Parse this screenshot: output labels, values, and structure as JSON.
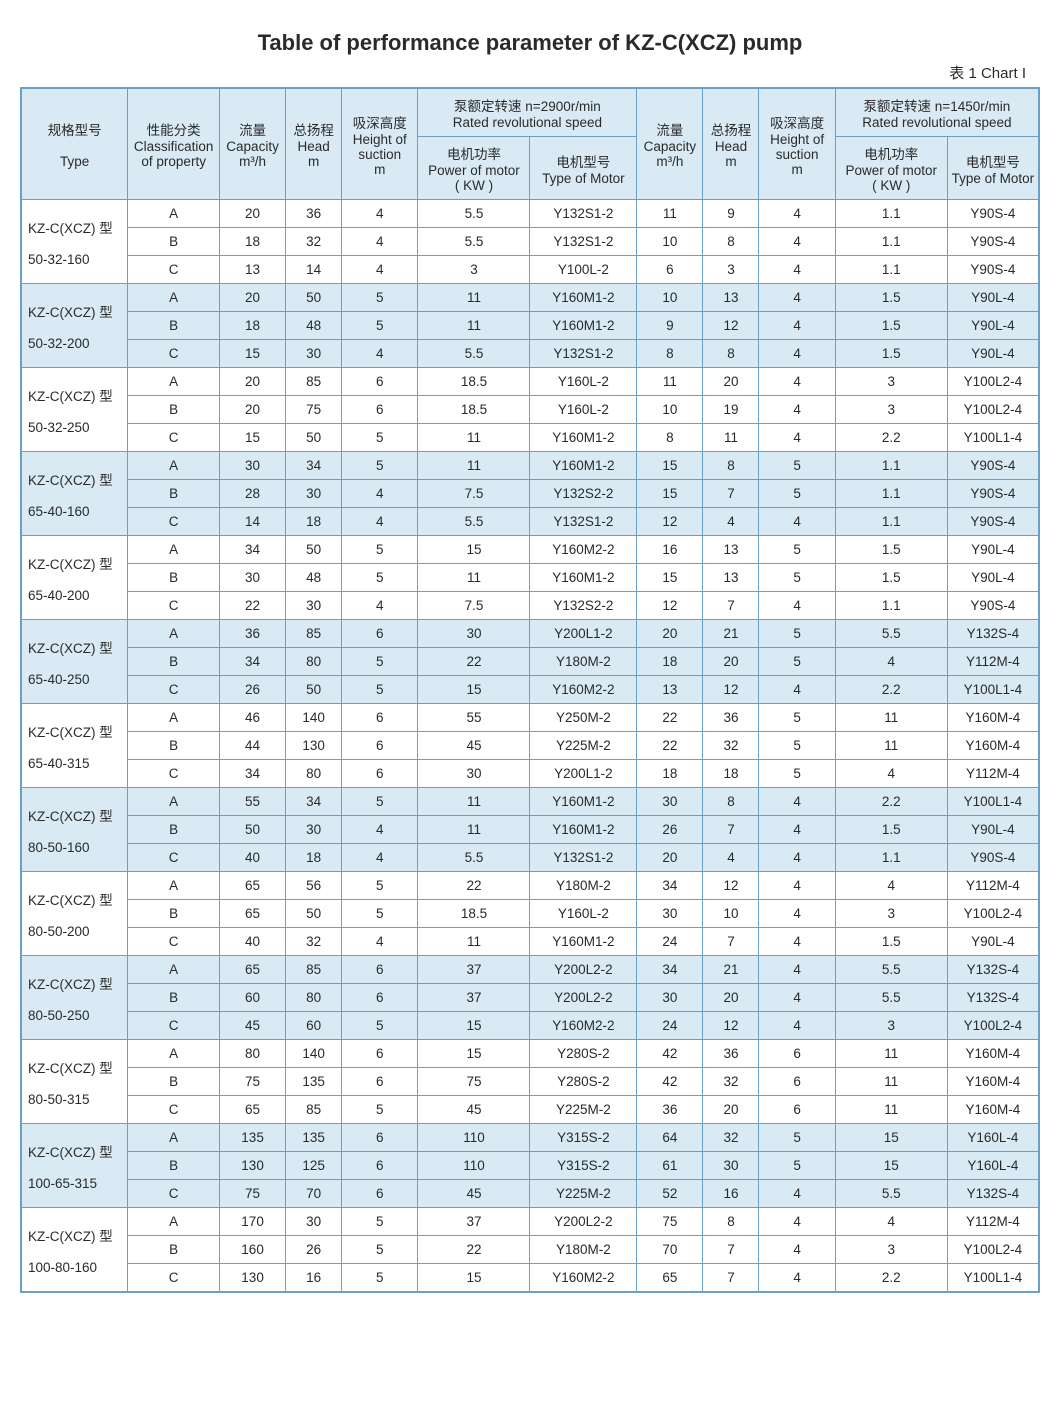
{
  "title": "Table of performance parameter of KZ-C(XCZ) pump",
  "chart_label": "表 1  Chart  I",
  "header": {
    "type_zh": "规格型号",
    "type_en": "Type",
    "class_zh": "性能分类",
    "class_en": "Classification of property",
    "cap_zh": "流量",
    "cap_en": "Capacity",
    "cap_unit": "m³/h",
    "head_zh": "总扬程",
    "head_en": "Head",
    "head_unit": "m",
    "suc_zh": "吸深高度",
    "suc_en": "Height of suction",
    "suc_unit": "m",
    "rated_2900_zh": "泵额定转速 n=2900r/min",
    "rated_2900_en": "Rated revolutional speed",
    "rated_1450_zh": "泵额定转速 n=1450r/min",
    "rated_1450_en": "Rated revolutional speed",
    "pow_zh": "电机功率",
    "pow_en": "Power of motor",
    "pow_unit": "( KW )",
    "mot_zh": "电机型号",
    "mot_en": "Type of Motor"
  },
  "types": [
    {
      "prefix": "KZ-C(XCZ) 型",
      "model": "50-32-160",
      "alt": false,
      "rows": [
        {
          "cls": "A",
          "cap": "20",
          "head": "36",
          "suc": "4",
          "pow": "5.5",
          "mot": "Y132S1-2",
          "cap2": "11",
          "head2": "9",
          "suc2": "4",
          "pow2": "1.1",
          "mot2": "Y90S-4"
        },
        {
          "cls": "B",
          "cap": "18",
          "head": "32",
          "suc": "4",
          "pow": "5.5",
          "mot": "Y132S1-2",
          "cap2": "10",
          "head2": "8",
          "suc2": "4",
          "pow2": "1.1",
          "mot2": "Y90S-4"
        },
        {
          "cls": "C",
          "cap": "13",
          "head": "14",
          "suc": "4",
          "pow": "3",
          "mot": "Y100L-2",
          "cap2": "6",
          "head2": "3",
          "suc2": "4",
          "pow2": "1.1",
          "mot2": "Y90S-4"
        }
      ]
    },
    {
      "prefix": "KZ-C(XCZ) 型",
      "model": "50-32-200",
      "alt": true,
      "rows": [
        {
          "cls": "A",
          "cap": "20",
          "head": "50",
          "suc": "5",
          "pow": "11",
          "mot": "Y160M1-2",
          "cap2": "10",
          "head2": "13",
          "suc2": "4",
          "pow2": "1.5",
          "mot2": "Y90L-4"
        },
        {
          "cls": "B",
          "cap": "18",
          "head": "48",
          "suc": "5",
          "pow": "11",
          "mot": "Y160M1-2",
          "cap2": "9",
          "head2": "12",
          "suc2": "4",
          "pow2": "1.5",
          "mot2": "Y90L-4"
        },
        {
          "cls": "C",
          "cap": "15",
          "head": "30",
          "suc": "4",
          "pow": "5.5",
          "mot": "Y132S1-2",
          "cap2": "8",
          "head2": "8",
          "suc2": "4",
          "pow2": "1.5",
          "mot2": "Y90L-4"
        }
      ]
    },
    {
      "prefix": "KZ-C(XCZ) 型",
      "model": "50-32-250",
      "alt": false,
      "rows": [
        {
          "cls": "A",
          "cap": "20",
          "head": "85",
          "suc": "6",
          "pow": "18.5",
          "mot": "Y160L-2",
          "cap2": "11",
          "head2": "20",
          "suc2": "4",
          "pow2": "3",
          "mot2": "Y100L2-4"
        },
        {
          "cls": "B",
          "cap": "20",
          "head": "75",
          "suc": "6",
          "pow": "18.5",
          "mot": "Y160L-2",
          "cap2": "10",
          "head2": "19",
          "suc2": "4",
          "pow2": "3",
          "mot2": "Y100L2-4"
        },
        {
          "cls": "C",
          "cap": "15",
          "head": "50",
          "suc": "5",
          "pow": "11",
          "mot": "Y160M1-2",
          "cap2": "8",
          "head2": "11",
          "suc2": "4",
          "pow2": "2.2",
          "mot2": "Y100L1-4"
        }
      ]
    },
    {
      "prefix": "KZ-C(XCZ) 型",
      "model": "65-40-160",
      "alt": true,
      "rows": [
        {
          "cls": "A",
          "cap": "30",
          "head": "34",
          "suc": "5",
          "pow": "11",
          "mot": "Y160M1-2",
          "cap2": "15",
          "head2": "8",
          "suc2": "5",
          "pow2": "1.1",
          "mot2": "Y90S-4"
        },
        {
          "cls": "B",
          "cap": "28",
          "head": "30",
          "suc": "4",
          "pow": "7.5",
          "mot": "Y132S2-2",
          "cap2": "15",
          "head2": "7",
          "suc2": "5",
          "pow2": "1.1",
          "mot2": "Y90S-4"
        },
        {
          "cls": "C",
          "cap": "14",
          "head": "18",
          "suc": "4",
          "pow": "5.5",
          "mot": "Y132S1-2",
          "cap2": "12",
          "head2": "4",
          "suc2": "4",
          "pow2": "1.1",
          "mot2": "Y90S-4"
        }
      ]
    },
    {
      "prefix": "KZ-C(XCZ) 型",
      "model": "65-40-200",
      "alt": false,
      "rows": [
        {
          "cls": "A",
          "cap": "34",
          "head": "50",
          "suc": "5",
          "pow": "15",
          "mot": "Y160M2-2",
          "cap2": "16",
          "head2": "13",
          "suc2": "5",
          "pow2": "1.5",
          "mot2": "Y90L-4"
        },
        {
          "cls": "B",
          "cap": "30",
          "head": "48",
          "suc": "5",
          "pow": "11",
          "mot": "Y160M1-2",
          "cap2": "15",
          "head2": "13",
          "suc2": "5",
          "pow2": "1.5",
          "mot2": "Y90L-4"
        },
        {
          "cls": "C",
          "cap": "22",
          "head": "30",
          "suc": "4",
          "pow": "7.5",
          "mot": "Y132S2-2",
          "cap2": "12",
          "head2": "7",
          "suc2": "4",
          "pow2": "1.1",
          "mot2": "Y90S-4"
        }
      ]
    },
    {
      "prefix": "KZ-C(XCZ) 型",
      "model": "65-40-250",
      "alt": true,
      "rows": [
        {
          "cls": "A",
          "cap": "36",
          "head": "85",
          "suc": "6",
          "pow": "30",
          "mot": "Y200L1-2",
          "cap2": "20",
          "head2": "21",
          "suc2": "5",
          "pow2": "5.5",
          "mot2": "Y132S-4"
        },
        {
          "cls": "B",
          "cap": "34",
          "head": "80",
          "suc": "5",
          "pow": "22",
          "mot": "Y180M-2",
          "cap2": "18",
          "head2": "20",
          "suc2": "5",
          "pow2": "4",
          "mot2": "Y112M-4"
        },
        {
          "cls": "C",
          "cap": "26",
          "head": "50",
          "suc": "5",
          "pow": "15",
          "mot": "Y160M2-2",
          "cap2": "13",
          "head2": "12",
          "suc2": "4",
          "pow2": "2.2",
          "mot2": "Y100L1-4"
        }
      ]
    },
    {
      "prefix": "KZ-C(XCZ) 型",
      "model": "65-40-315",
      "alt": false,
      "rows": [
        {
          "cls": "A",
          "cap": "46",
          "head": "140",
          "suc": "6",
          "pow": "55",
          "mot": "Y250M-2",
          "cap2": "22",
          "head2": "36",
          "suc2": "5",
          "pow2": "11",
          "mot2": "Y160M-4"
        },
        {
          "cls": "B",
          "cap": "44",
          "head": "130",
          "suc": "6",
          "pow": "45",
          "mot": "Y225M-2",
          "cap2": "22",
          "head2": "32",
          "suc2": "5",
          "pow2": "11",
          "mot2": "Y160M-4"
        },
        {
          "cls": "C",
          "cap": "34",
          "head": "80",
          "suc": "6",
          "pow": "30",
          "mot": "Y200L1-2",
          "cap2": "18",
          "head2": "18",
          "suc2": "5",
          "pow2": "4",
          "mot2": "Y112M-4"
        }
      ]
    },
    {
      "prefix": "KZ-C(XCZ) 型",
      "model": "80-50-160",
      "alt": true,
      "rows": [
        {
          "cls": "A",
          "cap": "55",
          "head": "34",
          "suc": "5",
          "pow": "11",
          "mot": "Y160M1-2",
          "cap2": "30",
          "head2": "8",
          "suc2": "4",
          "pow2": "2.2",
          "mot2": "Y100L1-4"
        },
        {
          "cls": "B",
          "cap": "50",
          "head": "30",
          "suc": "4",
          "pow": "11",
          "mot": "Y160M1-2",
          "cap2": "26",
          "head2": "7",
          "suc2": "4",
          "pow2": "1.5",
          "mot2": "Y90L-4"
        },
        {
          "cls": "C",
          "cap": "40",
          "head": "18",
          "suc": "4",
          "pow": "5.5",
          "mot": "Y132S1-2",
          "cap2": "20",
          "head2": "4",
          "suc2": "4",
          "pow2": "1.1",
          "mot2": "Y90S-4"
        }
      ]
    },
    {
      "prefix": "KZ-C(XCZ) 型",
      "model": "80-50-200",
      "alt": false,
      "rows": [
        {
          "cls": "A",
          "cap": "65",
          "head": "56",
          "suc": "5",
          "pow": "22",
          "mot": "Y180M-2",
          "cap2": "34",
          "head2": "12",
          "suc2": "4",
          "pow2": "4",
          "mot2": "Y112M-4"
        },
        {
          "cls": "B",
          "cap": "65",
          "head": "50",
          "suc": "5",
          "pow": "18.5",
          "mot": "Y160L-2",
          "cap2": "30",
          "head2": "10",
          "suc2": "4",
          "pow2": "3",
          "mot2": "Y100L2-4"
        },
        {
          "cls": "C",
          "cap": "40",
          "head": "32",
          "suc": "4",
          "pow": "11",
          "mot": "Y160M1-2",
          "cap2": "24",
          "head2": "7",
          "suc2": "4",
          "pow2": "1.5",
          "mot2": "Y90L-4"
        }
      ]
    },
    {
      "prefix": "KZ-C(XCZ) 型",
      "model": "80-50-250",
      "alt": true,
      "rows": [
        {
          "cls": "A",
          "cap": "65",
          "head": "85",
          "suc": "6",
          "pow": "37",
          "mot": "Y200L2-2",
          "cap2": "34",
          "head2": "21",
          "suc2": "4",
          "pow2": "5.5",
          "mot2": "Y132S-4"
        },
        {
          "cls": "B",
          "cap": "60",
          "head": "80",
          "suc": "6",
          "pow": "37",
          "mot": "Y200L2-2",
          "cap2": "30",
          "head2": "20",
          "suc2": "4",
          "pow2": "5.5",
          "mot2": "Y132S-4"
        },
        {
          "cls": "C",
          "cap": "45",
          "head": "60",
          "suc": "5",
          "pow": "15",
          "mot": "Y160M2-2",
          "cap2": "24",
          "head2": "12",
          "suc2": "4",
          "pow2": "3",
          "mot2": "Y100L2-4"
        }
      ]
    },
    {
      "prefix": "KZ-C(XCZ) 型",
      "model": "80-50-315",
      "alt": false,
      "rows": [
        {
          "cls": "A",
          "cap": "80",
          "head": "140",
          "suc": "6",
          "pow": "15",
          "mot": "Y280S-2",
          "cap2": "42",
          "head2": "36",
          "suc2": "6",
          "pow2": "11",
          "mot2": "Y160M-4"
        },
        {
          "cls": "B",
          "cap": "75",
          "head": "135",
          "suc": "6",
          "pow": "75",
          "mot": "Y280S-2",
          "cap2": "42",
          "head2": "32",
          "suc2": "6",
          "pow2": "11",
          "mot2": "Y160M-4"
        },
        {
          "cls": "C",
          "cap": "65",
          "head": "85",
          "suc": "5",
          "pow": "45",
          "mot": "Y225M-2",
          "cap2": "36",
          "head2": "20",
          "suc2": "6",
          "pow2": "11",
          "mot2": "Y160M-4"
        }
      ]
    },
    {
      "prefix": "KZ-C(XCZ) 型",
      "model": "100-65-315",
      "alt": true,
      "rows": [
        {
          "cls": "A",
          "cap": "135",
          "head": "135",
          "suc": "6",
          "pow": "110",
          "mot": "Y315S-2",
          "cap2": "64",
          "head2": "32",
          "suc2": "5",
          "pow2": "15",
          "mot2": "Y160L-4"
        },
        {
          "cls": "B",
          "cap": "130",
          "head": "125",
          "suc": "6",
          "pow": "110",
          "mot": "Y315S-2",
          "cap2": "61",
          "head2": "30",
          "suc2": "5",
          "pow2": "15",
          "mot2": "Y160L-4"
        },
        {
          "cls": "C",
          "cap": "75",
          "head": "70",
          "suc": "6",
          "pow": "45",
          "mot": "Y225M-2",
          "cap2": "52",
          "head2": "16",
          "suc2": "4",
          "pow2": "5.5",
          "mot2": "Y132S-4"
        }
      ]
    },
    {
      "prefix": "KZ-C(XCZ) 型",
      "model": "100-80-160",
      "alt": false,
      "rows": [
        {
          "cls": "A",
          "cap": "170",
          "head": "30",
          "suc": "5",
          "pow": "37",
          "mot": "Y200L2-2",
          "cap2": "75",
          "head2": "8",
          "suc2": "4",
          "pow2": "4",
          "mot2": "Y112M-4"
        },
        {
          "cls": "B",
          "cap": "160",
          "head": "26",
          "suc": "5",
          "pow": "22",
          "mot": "Y180M-2",
          "cap2": "70",
          "head2": "7",
          "suc2": "4",
          "pow2": "3",
          "mot2": "Y100L2-4"
        },
        {
          "cls": "C",
          "cap": "130",
          "head": "16",
          "suc": "5",
          "pow": "15",
          "mot": "Y160M2-2",
          "cap2": "65",
          "head2": "7",
          "suc2": "4",
          "pow2": "2.2",
          "mot2": "Y100L1-4"
        }
      ]
    }
  ],
  "styling": {
    "type": "table",
    "border_color": "#6aa0c8",
    "header_bg": "#d9eaf4",
    "alt_row_bg": "#d9eaf4",
    "plain_row_bg": "#ffffff",
    "text_color": "#2a2a2a",
    "title_fontsize": 22,
    "cell_fontsize": 13.5,
    "col_widths_pct": [
      10.5,
      9,
      6.5,
      5.5,
      7.5,
      11,
      10.5,
      6.5,
      5.5,
      7.5,
      11,
      9
    ]
  }
}
